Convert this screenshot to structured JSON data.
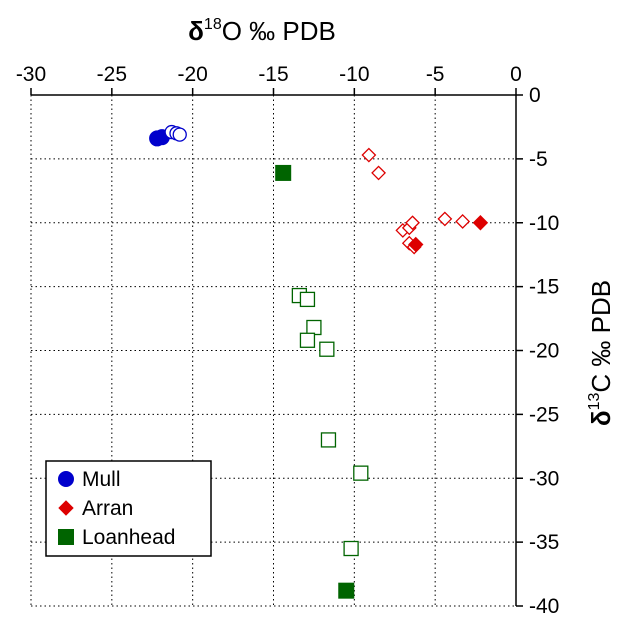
{
  "chart_data": {
    "type": "scatter",
    "title": "",
    "x_label": {
      "main": "δ",
      "sup": "18",
      "rest": "O ‰ PDB"
    },
    "y_label": {
      "main": "δ",
      "sup": "13",
      "rest": "C ‰ PDB"
    },
    "xlim": [
      -30,
      0
    ],
    "ylim": [
      -40,
      0
    ],
    "x_ticks": [
      -30,
      -25,
      -20,
      -15,
      -10,
      -5,
      0
    ],
    "y_ticks": [
      0,
      -5,
      -10,
      -15,
      -20,
      -25,
      -30,
      -35,
      -40
    ],
    "x_axis_position": "top",
    "y_axis_position": "right",
    "y_axis_reversed": true,
    "grid": "dotted",
    "legend_position": "bottom-left",
    "series": [
      {
        "name": "Mull",
        "marker": "circle",
        "color": "#0000cc",
        "points": [
          {
            "x": -22.2,
            "y": -3.4,
            "filled": true
          },
          {
            "x": -21.9,
            "y": -3.3,
            "filled": true
          },
          {
            "x": -21.3,
            "y": -2.9,
            "filled": false
          },
          {
            "x": -21.0,
            "y": -3.0,
            "filled": false
          },
          {
            "x": -20.8,
            "y": -3.1,
            "filled": false
          }
        ]
      },
      {
        "name": "Arran",
        "marker": "diamond",
        "color": "#dd0000",
        "points": [
          {
            "x": -9.1,
            "y": -4.7,
            "filled": false
          },
          {
            "x": -8.5,
            "y": -6.1,
            "filled": false
          },
          {
            "x": -7.0,
            "y": -10.6,
            "filled": false
          },
          {
            "x": -6.6,
            "y": -10.4,
            "filled": false
          },
          {
            "x": -6.4,
            "y": -10.0,
            "filled": false
          },
          {
            "x": -6.6,
            "y": -11.6,
            "filled": false
          },
          {
            "x": -6.3,
            "y": -11.9,
            "filled": false
          },
          {
            "x": -6.2,
            "y": -11.7,
            "filled": true
          },
          {
            "x": -4.4,
            "y": -9.7,
            "filled": false
          },
          {
            "x": -3.3,
            "y": -9.9,
            "filled": false
          },
          {
            "x": -2.2,
            "y": -10.0,
            "filled": true
          }
        ]
      },
      {
        "name": "Loanhead",
        "marker": "square",
        "color": "#006400",
        "points": [
          {
            "x": -14.4,
            "y": -6.1,
            "filled": true
          },
          {
            "x": -13.4,
            "y": -15.7,
            "filled": false
          },
          {
            "x": -12.9,
            "y": -16.0,
            "filled": false
          },
          {
            "x": -12.5,
            "y": -18.2,
            "filled": false
          },
          {
            "x": -12.9,
            "y": -19.2,
            "filled": false
          },
          {
            "x": -11.7,
            "y": -19.9,
            "filled": false
          },
          {
            "x": -11.6,
            "y": -27.0,
            "filled": false
          },
          {
            "x": -9.6,
            "y": -29.6,
            "filled": false
          },
          {
            "x": -10.2,
            "y": -35.5,
            "filled": false
          },
          {
            "x": -10.5,
            "y": -38.8,
            "filled": true
          }
        ]
      }
    ]
  }
}
